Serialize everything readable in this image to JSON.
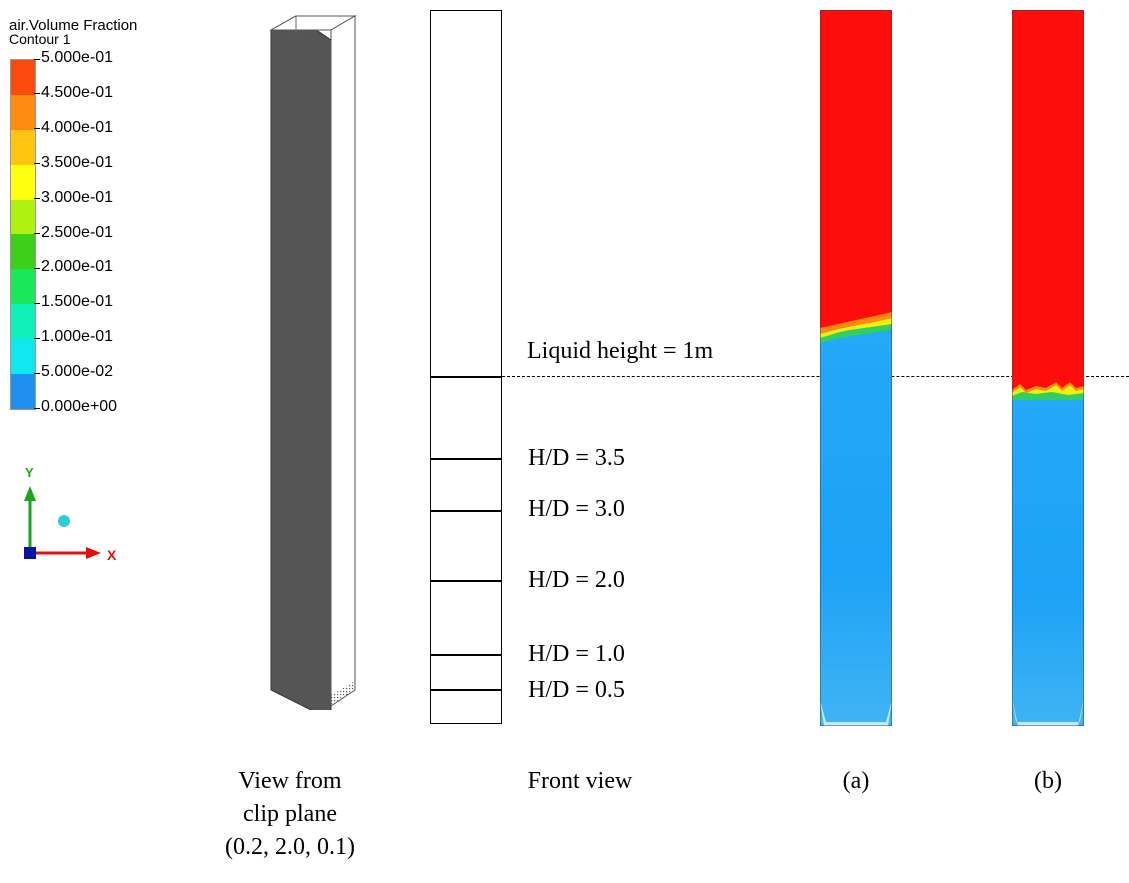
{
  "legend": {
    "title": "air.Volume Fraction",
    "subtitle": "Contour 1",
    "ticks": [
      "5.000e-01",
      "4.500e-01",
      "4.000e-01",
      "3.500e-01",
      "3.000e-01",
      "2.500e-01",
      "2.000e-01",
      "1.500e-01",
      "1.000e-01",
      "5.000e-02",
      "0.000e+00"
    ],
    "colors": [
      "#ff4a0f",
      "#ff8c10",
      "#ffc510",
      "#ffff10",
      "#b0f010",
      "#3cd01a",
      "#1ae85a",
      "#10f0b8",
      "#10e8f0",
      "#2090f0",
      "#1040f0"
    ]
  },
  "axes": {
    "y_label": "Y",
    "x_label": "X",
    "y_color": "#1aa51a",
    "x_color": "#e01010",
    "z_color": "#0a14a0",
    "sphere_color": "#2ad0d8"
  },
  "front_view": {
    "liquid_height_label": "Liquid height = 1m",
    "levels": [
      "H/D = 3.5",
      "H/D = 3.0",
      "H/D = 2.0",
      "H/D = 1.0",
      "H/D = 0.5"
    ]
  },
  "contour_colors": {
    "air": "#ff0c0c",
    "liquid": "#1ca2f6",
    "interface_orange": "#ff8a10",
    "interface_yellow": "#f0f010",
    "interface_green": "#30d060"
  },
  "captions": {
    "clip": [
      "View from",
      "clip plane",
      "(0.2, 2.0, 0.1)"
    ],
    "front": "Front view",
    "a": "(a)",
    "b": "(b)"
  }
}
